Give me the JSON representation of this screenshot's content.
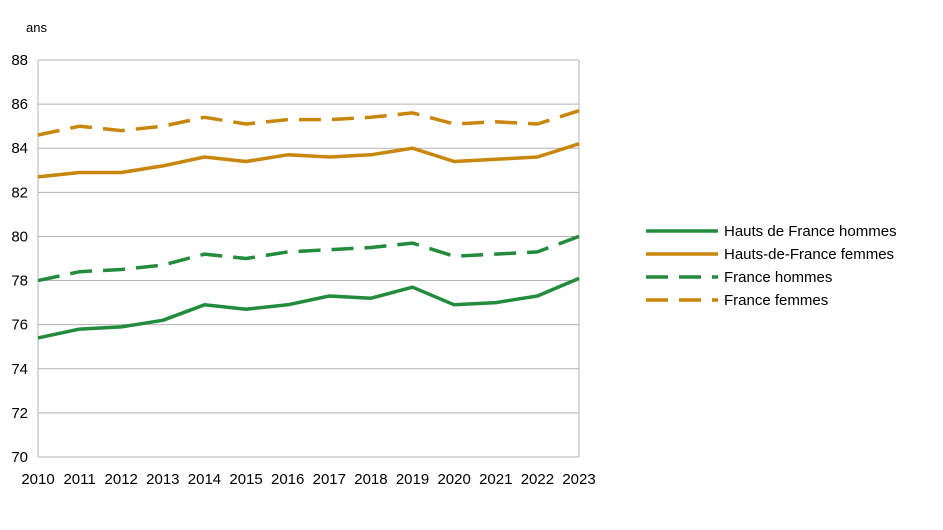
{
  "chart_data": {
    "type": "line",
    "y_unit_label": "ans",
    "x": [
      "2010",
      "2011",
      "2012",
      "2013",
      "2014",
      "2015",
      "2016",
      "2017",
      "2018",
      "2019",
      "2020",
      "2021",
      "2022",
      "2023"
    ],
    "ylim": [
      70,
      88
    ],
    "y_ticks": [
      "70",
      "72",
      "74",
      "76",
      "78",
      "80",
      "82",
      "84",
      "86",
      "88"
    ],
    "grid": true,
    "legend_position": "right",
    "series": [
      {
        "name": "Hauts de France hommes",
        "color": "#228b3c",
        "dash": "solid",
        "values": [
          75.4,
          75.8,
          75.9,
          76.2,
          76.9,
          76.7,
          76.9,
          77.3,
          77.2,
          77.7,
          76.9,
          77.0,
          77.3,
          78.1
        ]
      },
      {
        "name": "Hauts-de-France femmes",
        "color": "#c8860a",
        "dash": "solid",
        "values": [
          82.7,
          82.9,
          82.9,
          83.2,
          83.6,
          83.4,
          83.7,
          83.6,
          83.7,
          84.0,
          83.4,
          83.5,
          83.6,
          84.2
        ]
      },
      {
        "name": "France hommes",
        "color": "#228b3c",
        "dash": "dashed",
        "values": [
          78.0,
          78.4,
          78.5,
          78.7,
          79.2,
          79.0,
          79.3,
          79.4,
          79.5,
          79.7,
          79.1,
          79.2,
          79.3,
          80.0
        ]
      },
      {
        "name": "France femmes",
        "color": "#c8860a",
        "dash": "dashed",
        "values": [
          84.6,
          85.0,
          84.8,
          85.0,
          85.4,
          85.1,
          85.3,
          85.3,
          85.4,
          85.6,
          85.1,
          85.2,
          85.1,
          85.7
        ]
      }
    ]
  }
}
